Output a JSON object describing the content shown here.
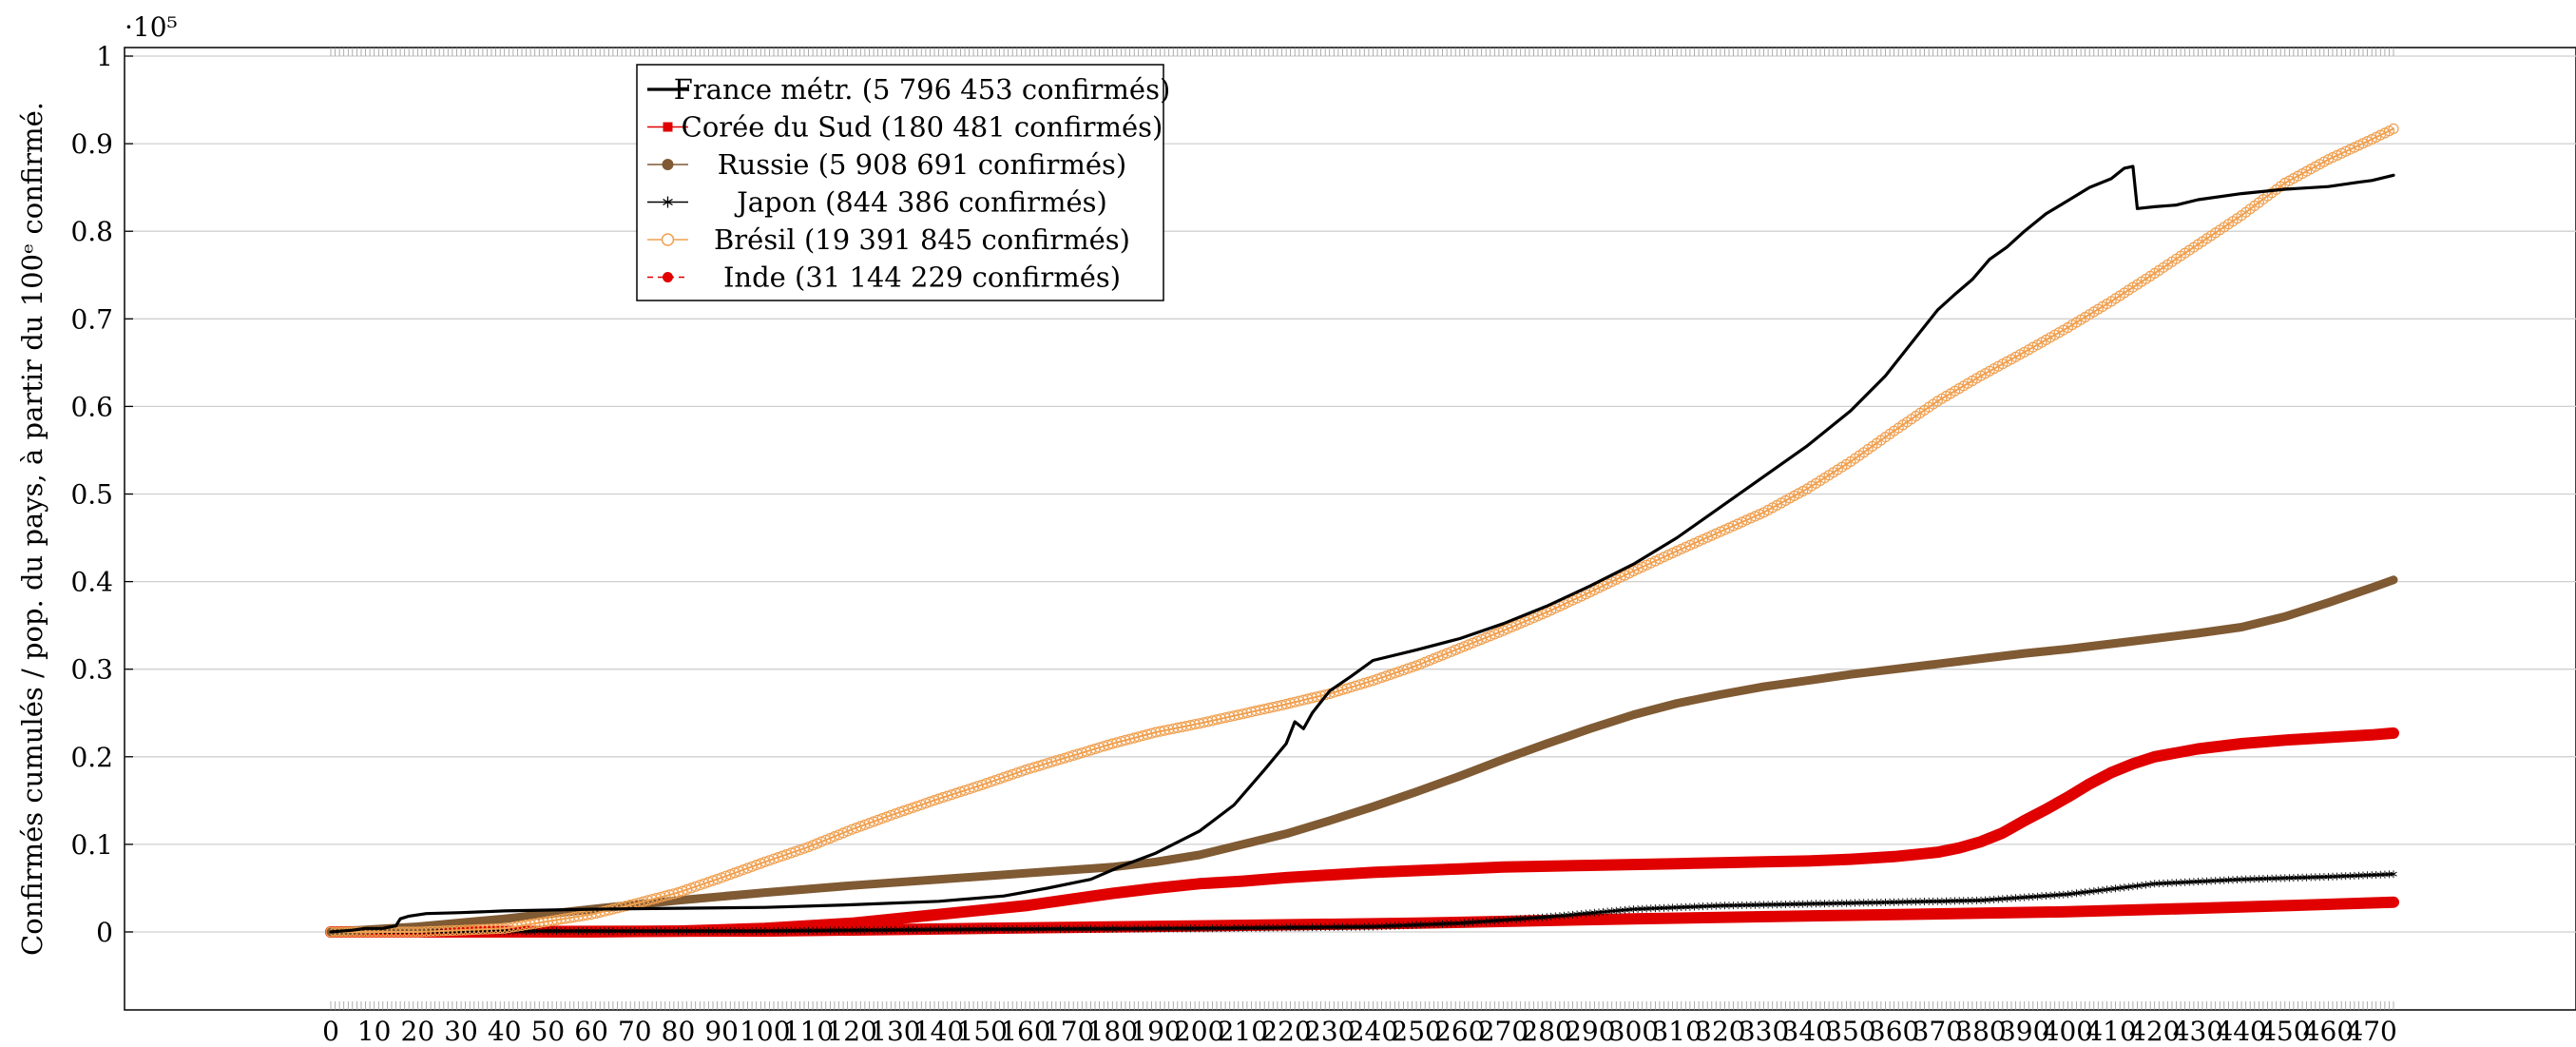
{
  "chart_data": {
    "type": "line",
    "ylabel": "Confirmés cumulés / pop. du pays, à partir du 100ᵉ confirmé.",
    "xlabel": "",
    "title": "",
    "y_exponent_label": "·10⁵",
    "xlim": [
      0,
      475
    ],
    "ylim": [
      -0.09,
      1.0
    ],
    "grid": true,
    "legend_position": "top-left",
    "y_ticks": [
      {
        "value": 0,
        "label": "0"
      },
      {
        "value": 0.1,
        "label": "0.1"
      },
      {
        "value": 0.2,
        "label": "0.2"
      },
      {
        "value": 0.3,
        "label": "0.3"
      },
      {
        "value": 0.4,
        "label": "0.4"
      },
      {
        "value": 0.5,
        "label": "0.5"
      },
      {
        "value": 0.6,
        "label": "0.6"
      },
      {
        "value": 0.7,
        "label": "0.7"
      },
      {
        "value": 0.8,
        "label": "0.8"
      },
      {
        "value": 0.9,
        "label": "0.9"
      },
      {
        "value": 1.0,
        "label": "1"
      }
    ],
    "x_ticks": [
      0,
      10,
      20,
      30,
      40,
      50,
      60,
      70,
      80,
      90,
      100,
      110,
      120,
      130,
      140,
      150,
      160,
      170,
      180,
      190,
      200,
      210,
      220,
      230,
      240,
      250,
      260,
      270,
      280,
      290,
      300,
      310,
      320,
      330,
      340,
      350,
      360,
      370,
      380,
      390,
      400,
      410,
      420,
      430,
      440,
      450,
      460,
      470
    ],
    "series": [
      {
        "name": "France métr. (5 796 453 confirmés)",
        "color": "#000000",
        "marker": "none",
        "line": "solid",
        "points": [
          [
            0,
            0
          ],
          [
            5,
            0.002
          ],
          [
            8,
            0.004
          ],
          [
            12,
            0.004
          ],
          [
            15,
            0.007
          ],
          [
            16,
            0.015
          ],
          [
            18,
            0.018
          ],
          [
            22,
            0.021
          ],
          [
            30,
            0.022
          ],
          [
            40,
            0.024
          ],
          [
            60,
            0.026
          ],
          [
            80,
            0.027
          ],
          [
            100,
            0.028
          ],
          [
            120,
            0.031
          ],
          [
            140,
            0.035
          ],
          [
            155,
            0.041
          ],
          [
            165,
            0.05
          ],
          [
            175,
            0.06
          ],
          [
            182,
            0.075
          ],
          [
            190,
            0.09
          ],
          [
            200,
            0.115
          ],
          [
            208,
            0.145
          ],
          [
            215,
            0.185
          ],
          [
            220,
            0.215
          ],
          [
            222,
            0.24
          ],
          [
            224,
            0.232
          ],
          [
            226,
            0.25
          ],
          [
            230,
            0.275
          ],
          [
            235,
            0.292
          ],
          [
            240,
            0.31
          ],
          [
            250,
            0.322
          ],
          [
            260,
            0.335
          ],
          [
            270,
            0.352
          ],
          [
            280,
            0.372
          ],
          [
            290,
            0.395
          ],
          [
            300,
            0.42
          ],
          [
            310,
            0.45
          ],
          [
            320,
            0.485
          ],
          [
            330,
            0.52
          ],
          [
            340,
            0.555
          ],
          [
            350,
            0.595
          ],
          [
            358,
            0.635
          ],
          [
            362,
            0.66
          ],
          [
            366,
            0.685
          ],
          [
            370,
            0.71
          ],
          [
            374,
            0.728
          ],
          [
            378,
            0.745
          ],
          [
            382,
            0.768
          ],
          [
            386,
            0.782
          ],
          [
            390,
            0.8
          ],
          [
            395,
            0.82
          ],
          [
            400,
            0.835
          ],
          [
            405,
            0.85
          ],
          [
            410,
            0.86
          ],
          [
            413,
            0.872
          ],
          [
            415,
            0.874
          ],
          [
            416,
            0.826
          ],
          [
            420,
            0.828
          ],
          [
            425,
            0.83
          ],
          [
            430,
            0.836
          ],
          [
            440,
            0.843
          ],
          [
            450,
            0.848
          ],
          [
            460,
            0.851
          ],
          [
            467,
            0.856
          ],
          [
            470,
            0.858
          ],
          [
            475,
            0.864
          ]
        ]
      },
      {
        "name": "Corée du Sud (180 481 confirmés)",
        "color": "#e00000",
        "marker": "square",
        "line": "solid",
        "points": [
          [
            0,
            0
          ],
          [
            100,
            0.001
          ],
          [
            150,
            0.004
          ],
          [
            200,
            0.007
          ],
          [
            250,
            0.01
          ],
          [
            300,
            0.015
          ],
          [
            350,
            0.019
          ],
          [
            400,
            0.023
          ],
          [
            430,
            0.027
          ],
          [
            450,
            0.03
          ],
          [
            475,
            0.034
          ]
        ]
      },
      {
        "name": "Russie (5 908 691 confirmés)",
        "color": "#7f5a33",
        "marker": "circle",
        "line": "solid",
        "points": [
          [
            0,
            0
          ],
          [
            20,
            0.006
          ],
          [
            40,
            0.015
          ],
          [
            60,
            0.026
          ],
          [
            80,
            0.036
          ],
          [
            100,
            0.045
          ],
          [
            120,
            0.053
          ],
          [
            140,
            0.06
          ],
          [
            160,
            0.067
          ],
          [
            180,
            0.074
          ],
          [
            190,
            0.08
          ],
          [
            200,
            0.088
          ],
          [
            210,
            0.1
          ],
          [
            220,
            0.112
          ],
          [
            230,
            0.127
          ],
          [
            240,
            0.143
          ],
          [
            250,
            0.16
          ],
          [
            260,
            0.178
          ],
          [
            270,
            0.197
          ],
          [
            280,
            0.215
          ],
          [
            290,
            0.232
          ],
          [
            300,
            0.248
          ],
          [
            310,
            0.261
          ],
          [
            320,
            0.271
          ],
          [
            330,
            0.28
          ],
          [
            340,
            0.287
          ],
          [
            350,
            0.294
          ],
          [
            360,
            0.3
          ],
          [
            370,
            0.306
          ],
          [
            380,
            0.312
          ],
          [
            390,
            0.318
          ],
          [
            400,
            0.323
          ],
          [
            410,
            0.329
          ],
          [
            420,
            0.335
          ],
          [
            430,
            0.341
          ],
          [
            440,
            0.348
          ],
          [
            450,
            0.36
          ],
          [
            460,
            0.376
          ],
          [
            470,
            0.393
          ],
          [
            475,
            0.402
          ]
        ]
      },
      {
        "name": "Japon (844 386 confirmés)",
        "color": "#000000",
        "marker": "star",
        "line": "solid",
        "points": [
          [
            0,
            0
          ],
          [
            50,
            0.001
          ],
          [
            100,
            0.001
          ],
          [
            150,
            0.003
          ],
          [
            200,
            0.004
          ],
          [
            240,
            0.006
          ],
          [
            260,
            0.01
          ],
          [
            280,
            0.017
          ],
          [
            300,
            0.026
          ],
          [
            320,
            0.03
          ],
          [
            340,
            0.032
          ],
          [
            360,
            0.034
          ],
          [
            380,
            0.036
          ],
          [
            400,
            0.043
          ],
          [
            420,
            0.055
          ],
          [
            440,
            0.06
          ],
          [
            460,
            0.063
          ],
          [
            475,
            0.066
          ]
        ]
      },
      {
        "name": "Brésil (19 391 845 confirmés)",
        "color": "#f0a050",
        "marker": "circle-open",
        "line": "solid",
        "points": [
          [
            0,
            0
          ],
          [
            20,
            0.0
          ],
          [
            40,
            0.004
          ],
          [
            50,
            0.012
          ],
          [
            60,
            0.02
          ],
          [
            70,
            0.032
          ],
          [
            80,
            0.045
          ],
          [
            90,
            0.062
          ],
          [
            100,
            0.08
          ],
          [
            110,
            0.097
          ],
          [
            120,
            0.117
          ],
          [
            130,
            0.135
          ],
          [
            140,
            0.152
          ],
          [
            150,
            0.168
          ],
          [
            160,
            0.185
          ],
          [
            170,
            0.2
          ],
          [
            180,
            0.215
          ],
          [
            190,
            0.228
          ],
          [
            200,
            0.238
          ],
          [
            210,
            0.249
          ],
          [
            220,
            0.26
          ],
          [
            230,
            0.272
          ],
          [
            240,
            0.287
          ],
          [
            250,
            0.304
          ],
          [
            260,
            0.324
          ],
          [
            270,
            0.344
          ],
          [
            280,
            0.365
          ],
          [
            290,
            0.388
          ],
          [
            300,
            0.412
          ],
          [
            310,
            0.435
          ],
          [
            320,
            0.457
          ],
          [
            330,
            0.479
          ],
          [
            340,
            0.506
          ],
          [
            350,
            0.537
          ],
          [
            360,
            0.572
          ],
          [
            370,
            0.606
          ],
          [
            380,
            0.635
          ],
          [
            390,
            0.662
          ],
          [
            400,
            0.69
          ],
          [
            410,
            0.72
          ],
          [
            420,
            0.752
          ],
          [
            430,
            0.785
          ],
          [
            440,
            0.818
          ],
          [
            450,
            0.855
          ],
          [
            460,
            0.882
          ],
          [
            470,
            0.905
          ],
          [
            475,
            0.917
          ]
        ]
      },
      {
        "name": "Inde (31 144 229 confirmés)",
        "color": "#e00000",
        "marker": "dot",
        "line": "dashed",
        "points": [
          [
            0,
            0
          ],
          [
            60,
            0.0
          ],
          [
            80,
            0.001
          ],
          [
            100,
            0.004
          ],
          [
            120,
            0.01
          ],
          [
            140,
            0.02
          ],
          [
            160,
            0.03
          ],
          [
            170,
            0.037
          ],
          [
            180,
            0.044
          ],
          [
            190,
            0.05
          ],
          [
            200,
            0.055
          ],
          [
            210,
            0.058
          ],
          [
            220,
            0.062
          ],
          [
            230,
            0.065
          ],
          [
            240,
            0.068
          ],
          [
            250,
            0.07
          ],
          [
            260,
            0.072
          ],
          [
            270,
            0.074
          ],
          [
            280,
            0.075
          ],
          [
            290,
            0.076
          ],
          [
            300,
            0.077
          ],
          [
            310,
            0.078
          ],
          [
            320,
            0.079
          ],
          [
            330,
            0.08
          ],
          [
            340,
            0.081
          ],
          [
            350,
            0.083
          ],
          [
            360,
            0.086
          ],
          [
            370,
            0.091
          ],
          [
            375,
            0.096
          ],
          [
            380,
            0.103
          ],
          [
            385,
            0.113
          ],
          [
            390,
            0.127
          ],
          [
            395,
            0.14
          ],
          [
            400,
            0.154
          ],
          [
            405,
            0.169
          ],
          [
            410,
            0.182
          ],
          [
            415,
            0.192
          ],
          [
            420,
            0.2
          ],
          [
            430,
            0.209
          ],
          [
            440,
            0.215
          ],
          [
            450,
            0.219
          ],
          [
            460,
            0.222
          ],
          [
            470,
            0.225
          ],
          [
            475,
            0.227
          ]
        ]
      }
    ]
  }
}
